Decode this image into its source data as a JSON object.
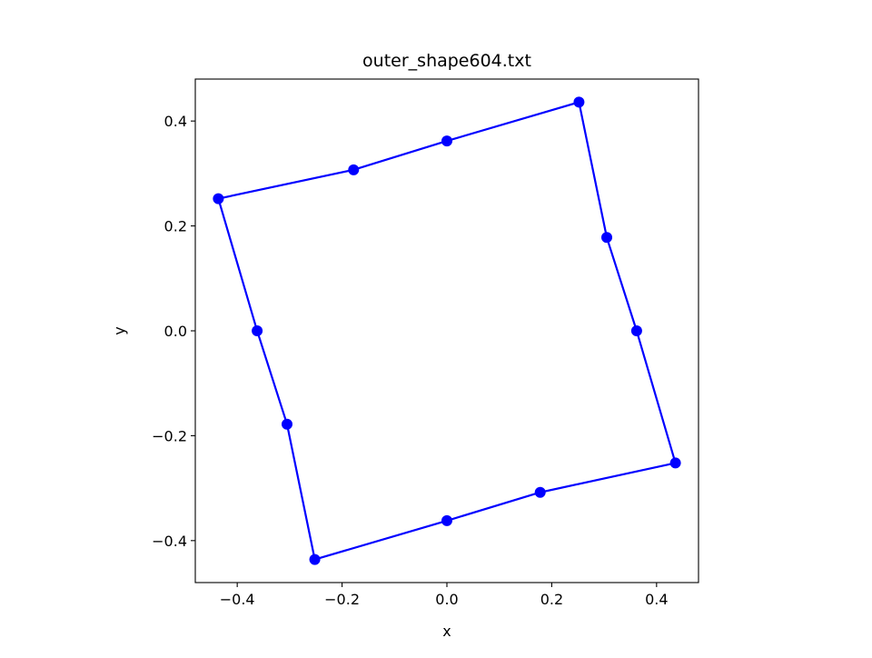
{
  "chart_data": {
    "type": "line",
    "title": "outer_shape604.txt",
    "xlabel": "x",
    "ylabel": "y",
    "xlim": [
      -0.48,
      0.48
    ],
    "ylim": [
      -0.48,
      0.48
    ],
    "xticks": [
      -0.4,
      -0.2,
      0.0,
      0.2,
      0.4
    ],
    "yticks": [
      -0.4,
      -0.2,
      0.0,
      0.2,
      0.4
    ],
    "xtick_labels": [
      "−0.4",
      "−0.2",
      "0.0",
      "0.2",
      "0.4"
    ],
    "ytick_labels": [
      "−0.4",
      "−0.2",
      "0.0",
      "0.2",
      "0.4"
    ],
    "grid": false,
    "aspect": "equal",
    "series": [
      {
        "color": "#0000ff",
        "marker": "circle",
        "closed": true,
        "x": [
          0.436,
          0.178,
          0.0,
          -0.252,
          -0.305,
          -0.362,
          -0.436,
          -0.178,
          0.0,
          0.252,
          0.305,
          0.362,
          0.436
        ],
        "y": [
          -0.252,
          -0.308,
          -0.362,
          -0.436,
          -0.178,
          0.0,
          0.252,
          0.307,
          0.362,
          0.436,
          0.178,
          0.0,
          -0.252
        ]
      }
    ]
  }
}
